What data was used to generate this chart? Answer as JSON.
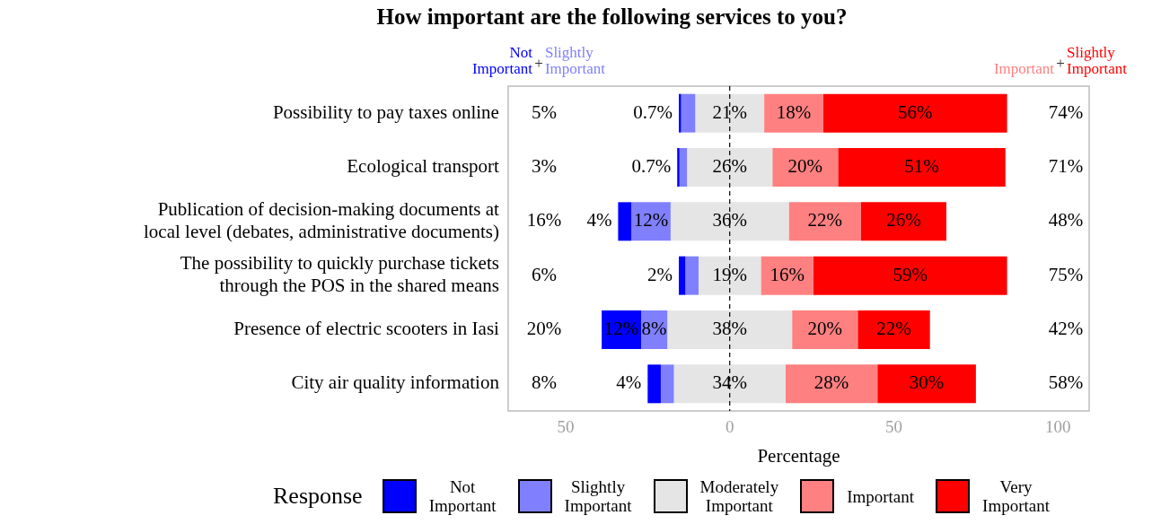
{
  "chart_data": {
    "type": "bar",
    "orientation": "horizontal",
    "title": "How important are the following services to you?",
    "xlabel": "Percentage",
    "legend_title": "Response",
    "legend": "bottom",
    "grid": false,
    "categories": [
      "Possibility to pay taxes online",
      "Ecological transport",
      "Publication of decision-making documents at local level (debates, administrative documents)",
      "The possibility to quickly purchase tickets through the POS in the shared means",
      "Presence of electric scooters in Iasi",
      "City air quality information"
    ],
    "xlim": [
      -67.5,
      109.5
    ],
    "xticks": [
      {
        "value": -50,
        "label": "50"
      },
      0,
      50,
      100
    ],
    "ref_lines": [
      {
        "axis": "x",
        "value": 0,
        "line_style": "dashed",
        "color": "#000000"
      }
    ],
    "series": [
      {
        "name": "Not Important",
        "color": "#0000ff",
        "values": [
          0.7,
          0.7,
          4,
          2,
          12,
          4
        ],
        "base": [
          -15.5,
          -16,
          -34,
          -15.5,
          -39,
          -25
        ],
        "value_labels": [
          "0.7%",
          "0.7%",
          "4%",
          "2%",
          "12%",
          "4%"
        ]
      },
      {
        "name": "Slightly Important",
        "color": "#8080ff",
        "values": [
          4.3,
          2.3,
          12,
          4,
          8,
          4
        ],
        "base": [
          -14.8,
          -15.3,
          -30,
          -13.5,
          -27,
          -21
        ],
        "value_labels": [
          null,
          null,
          "12%",
          null,
          "8%",
          null
        ]
      },
      {
        "name": "Moderately Important",
        "color": "#e5e5e5",
        "values": [
          21,
          26,
          36,
          19,
          38,
          34
        ],
        "base": [
          -10.5,
          -13,
          -18,
          -9.5,
          -19,
          -17
        ],
        "value_labels": [
          "21%",
          "26%",
          "36%",
          "19%",
          "38%",
          "34%"
        ]
      },
      {
        "name": "Important",
        "color": "#ff8080",
        "values": [
          18,
          20,
          22,
          16,
          20,
          28
        ],
        "base": [
          10.5,
          13,
          18,
          9.5,
          19,
          17
        ],
        "value_labels": [
          "18%",
          "20%",
          "22%",
          "16%",
          "20%",
          "28%"
        ]
      },
      {
        "name": "Very Important",
        "color": "#ff0000",
        "values": [
          56,
          51,
          26,
          59,
          22,
          30
        ],
        "base": [
          28.5,
          33,
          40,
          25.5,
          39,
          45
        ],
        "value_labels": [
          "56%",
          "51%",
          "26%",
          "59%",
          "22%",
          "30%"
        ]
      }
    ],
    "annotations": [
      "Not Important",
      "+",
      "Slightly Important",
      "Important",
      "+",
      "Slightly Important",
      "5%",
      "3%",
      "16%",
      "6%",
      "20%",
      "8%",
      "74%",
      "71%",
      "48%",
      "75%",
      "42%",
      "58%"
    ]
  }
}
